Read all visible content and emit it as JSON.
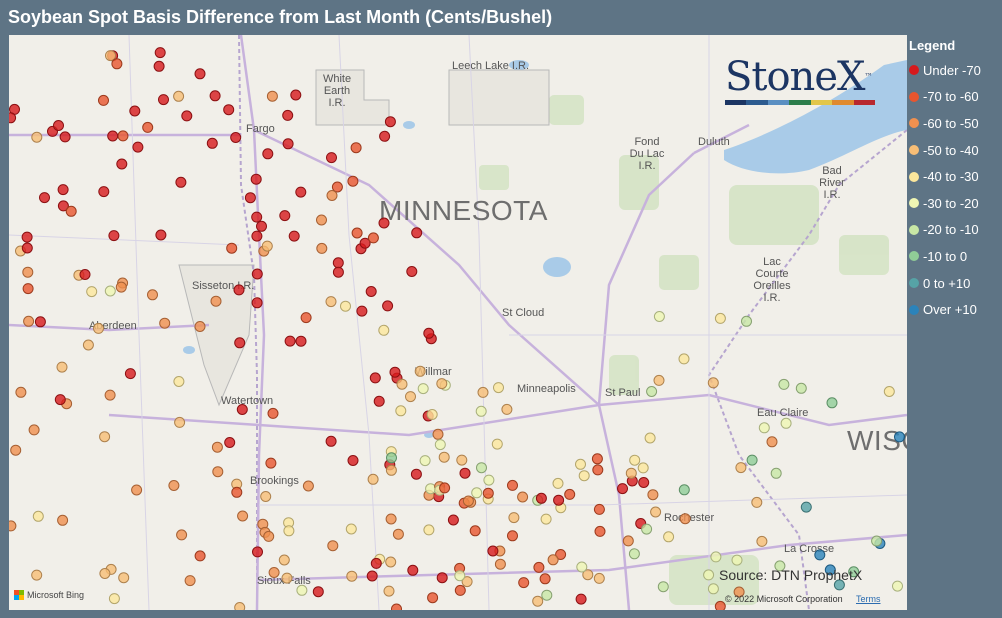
{
  "title": "Soybean Spot Basis Difference from Last Month (Cents/Bushel)",
  "legend": {
    "title": "Legend",
    "items": [
      {
        "label": "Under -70",
        "color": "#d7191c"
      },
      {
        "label": "-70 to -60",
        "color": "#e8552e"
      },
      {
        "label": "-60 to -50",
        "color": "#f0904f"
      },
      {
        "label": "-50 to -40",
        "color": "#f8be76"
      },
      {
        "label": "-40 to -30",
        "color": "#fce79c"
      },
      {
        "label": "-30 to -20",
        "color": "#eff6b3"
      },
      {
        "label": "-20 to -10",
        "color": "#c8e7a5"
      },
      {
        "label": "-10 to 0",
        "color": "#90cd97"
      },
      {
        "label": "0 to +10",
        "color": "#56a3a6"
      },
      {
        "label": "Over +10",
        "color": "#2b83ba"
      }
    ]
  },
  "map": {
    "state_label": "MINNESOTA",
    "state_label_2": "WISC",
    "places": [
      {
        "name": "Fargo",
        "type": "city"
      },
      {
        "name": "Duluth",
        "type": "city"
      },
      {
        "name": "St Cloud",
        "type": "city"
      },
      {
        "name": "Minneapolis",
        "type": "city"
      },
      {
        "name": "St Paul",
        "type": "city"
      },
      {
        "name": "Aberdeen",
        "type": "city"
      },
      {
        "name": "Willmar",
        "type": "city"
      },
      {
        "name": "Watertown",
        "type": "city"
      },
      {
        "name": "Brookings",
        "type": "city"
      },
      {
        "name": "Eau Claire",
        "type": "city"
      },
      {
        "name": "Rochester",
        "type": "city"
      },
      {
        "name": "La Crosse",
        "type": "city"
      },
      {
        "name": "Sioux Falls",
        "type": "city"
      },
      {
        "name": "Sisseton I.R.",
        "type": "reservation"
      },
      {
        "name": "White Earth I.R.",
        "type": "reservation"
      },
      {
        "name": "Leech Lake I.R.",
        "type": "reservation"
      },
      {
        "name": "Fond Du Lac I.R.",
        "type": "reservation"
      },
      {
        "name": "Bad River I.R.",
        "type": "reservation"
      },
      {
        "name": "Lac Courte Oreilles I.R.",
        "type": "reservation"
      }
    ]
  },
  "logo": {
    "text": "StoneX",
    "mark": "™",
    "bar_colors": [
      "#1c3563",
      "#2d5b8f",
      "#5a8fc2",
      "#2c7d4b",
      "#e2c64a",
      "#e08a2e",
      "#b8282e"
    ]
  },
  "source": "Source: DTN ProphetX",
  "copyright": "© 2022 Microsoft Corporation",
  "terms": "Terms",
  "bing": "Microsoft Bing",
  "bing_colors": [
    "#f25022",
    "#7fba00",
    "#00a4ef",
    "#ffb900"
  ]
}
